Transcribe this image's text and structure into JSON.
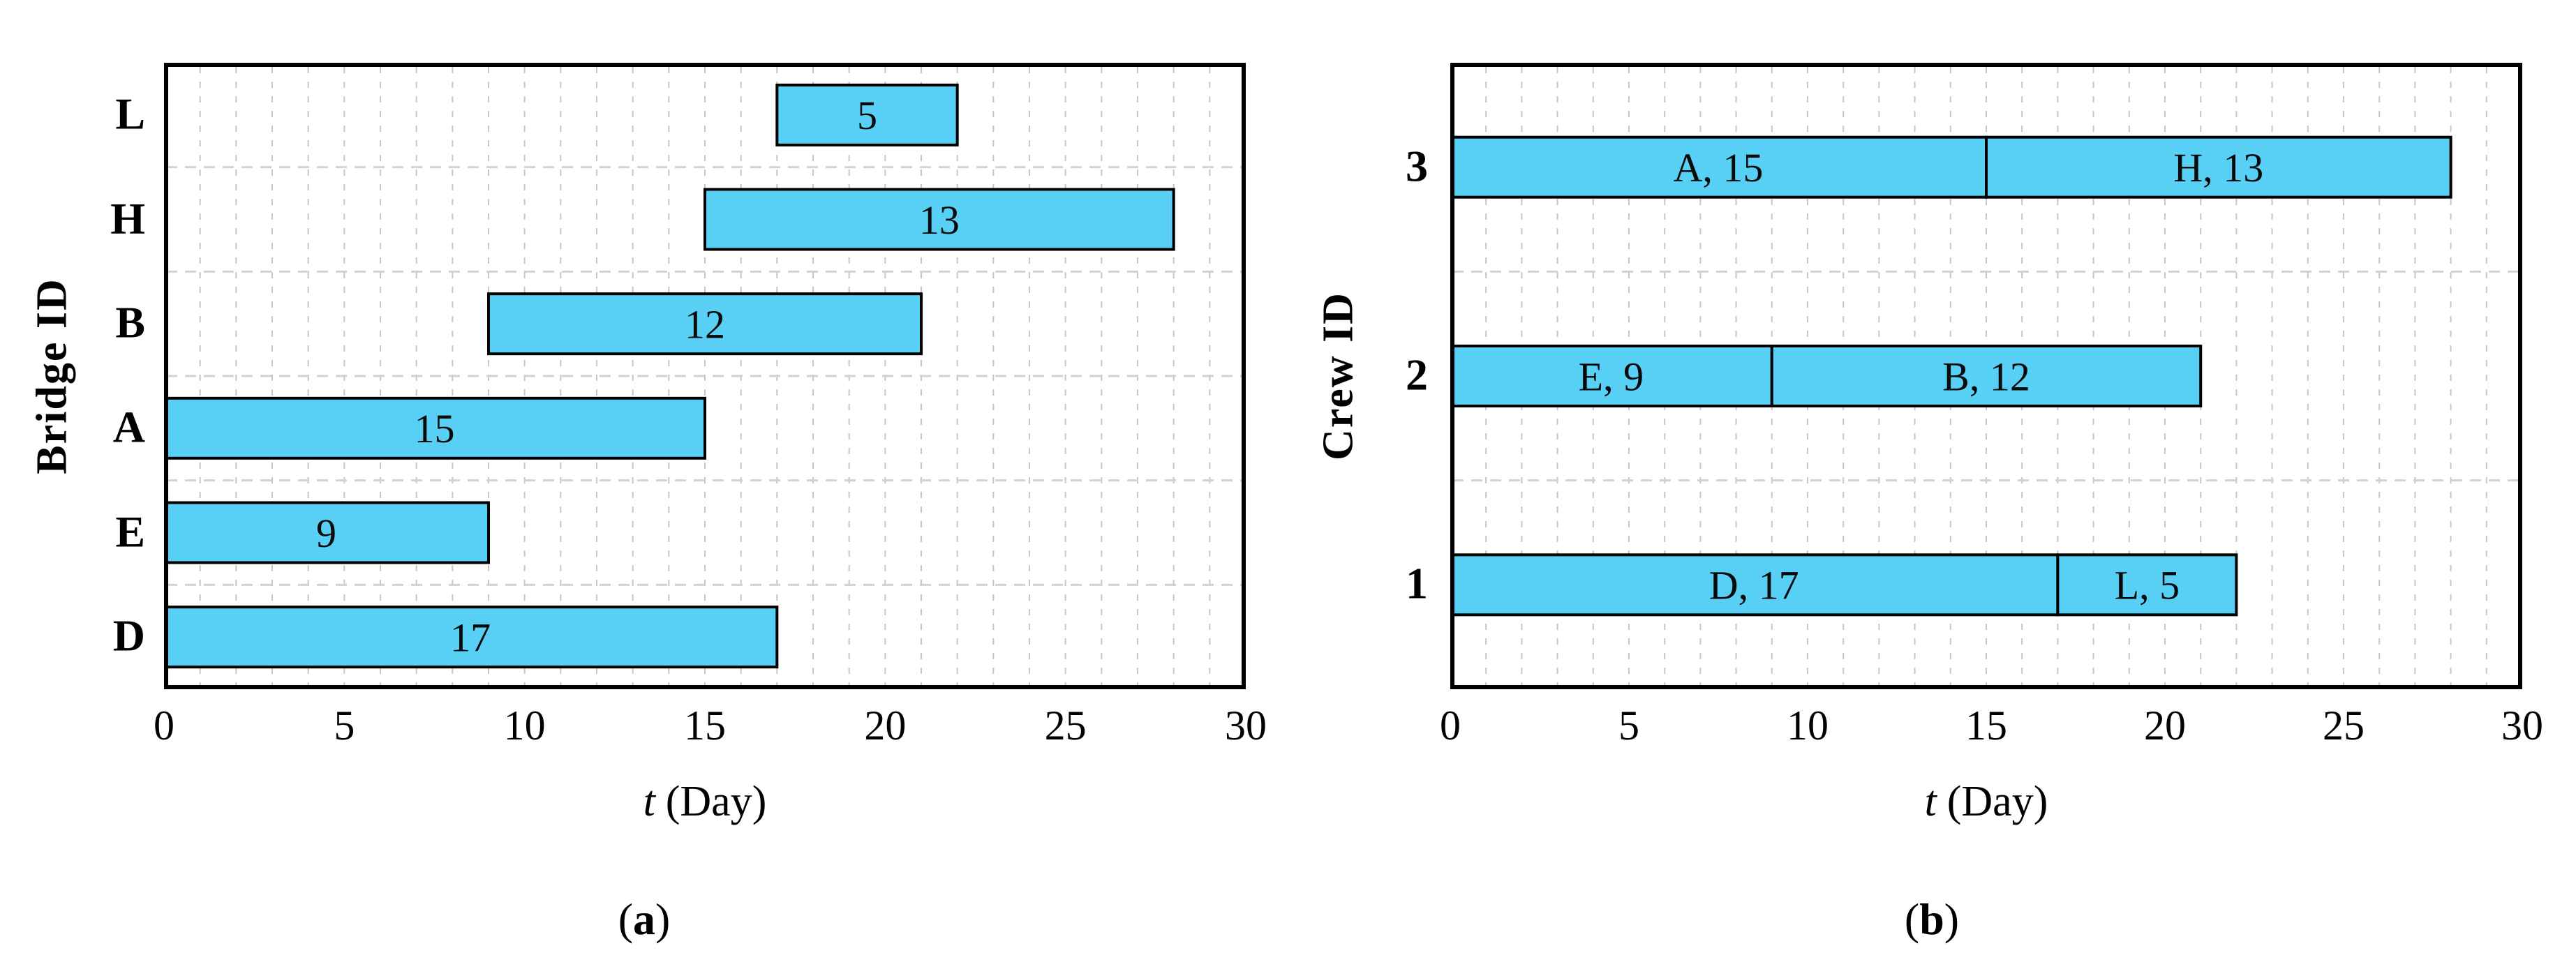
{
  "figure": {
    "background": "#ffffff",
    "description": "Two horizontal Gantt bar charts side by side"
  },
  "colors": {
    "bar_fill": "#58D0F6",
    "bar_border": "#000000",
    "grid_minor": "#c6c6c6",
    "row_separator": "#d2d2d2",
    "axis_box": "#000000",
    "text": "#0a0a0a"
  },
  "chart_data": [
    {
      "type": "bar",
      "orientation": "horizontal",
      "caption": "(a)",
      "caption_open": "(",
      "caption_letter": "a",
      "caption_close": ")",
      "ylabel": "Bridge ID",
      "xlabel": "t (Day)",
      "xlabel_t": "t",
      "xlabel_unit": "(Day)",
      "xlim": [
        0,
        30
      ],
      "xticks": [
        "0",
        "5",
        "10",
        "15",
        "20",
        "25",
        "30"
      ],
      "grid": {
        "minor_vertical_every": 1,
        "row_separators": true,
        "style": "dashed"
      },
      "legend": "none",
      "categories": [
        "L",
        "H",
        "B",
        "A",
        "E",
        "D"
      ],
      "rows": [
        {
          "category": "L",
          "segments": [
            {
              "label": "5",
              "start": 17,
              "duration": 5,
              "end": 22
            }
          ]
        },
        {
          "category": "H",
          "segments": [
            {
              "label": "13",
              "start": 15,
              "duration": 13,
              "end": 28
            }
          ]
        },
        {
          "category": "B",
          "segments": [
            {
              "label": "12",
              "start": 9,
              "duration": 12,
              "end": 21
            }
          ]
        },
        {
          "category": "A",
          "segments": [
            {
              "label": "15",
              "start": 0,
              "duration": 15,
              "end": 15
            }
          ]
        },
        {
          "category": "E",
          "segments": [
            {
              "label": "9",
              "start": 0,
              "duration": 9,
              "end": 9
            }
          ]
        },
        {
          "category": "D",
          "segments": [
            {
              "label": "17",
              "start": 0,
              "duration": 17,
              "end": 17
            }
          ]
        }
      ]
    },
    {
      "type": "bar",
      "orientation": "horizontal",
      "caption": "(b)",
      "caption_open": "(",
      "caption_letter": "b",
      "caption_close": ")",
      "ylabel": "Crew ID",
      "xlabel": "t (Day)",
      "xlabel_t": "t",
      "xlabel_unit": "(Day)",
      "xlim": [
        0,
        30
      ],
      "xticks": [
        "0",
        "5",
        "10",
        "15",
        "20",
        "25",
        "30"
      ],
      "grid": {
        "minor_vertical_every": 1,
        "row_separators": true,
        "style": "dashed"
      },
      "legend": "none",
      "categories": [
        "3",
        "2",
        "1"
      ],
      "rows": [
        {
          "category": "3",
          "segments": [
            {
              "label": "A, 15",
              "start": 0,
              "duration": 15,
              "end": 15
            },
            {
              "label": "H, 13",
              "start": 15,
              "duration": 13,
              "end": 28
            }
          ]
        },
        {
          "category": "2",
          "segments": [
            {
              "label": "E, 9",
              "start": 0,
              "duration": 9,
              "end": 9
            },
            {
              "label": "B, 12",
              "start": 9,
              "duration": 12,
              "end": 21
            }
          ]
        },
        {
          "category": "1",
          "segments": [
            {
              "label": "D, 17",
              "start": 0,
              "duration": 17,
              "end": 17
            },
            {
              "label": "L, 5",
              "start": 17,
              "duration": 5,
              "end": 22
            }
          ]
        }
      ]
    }
  ]
}
